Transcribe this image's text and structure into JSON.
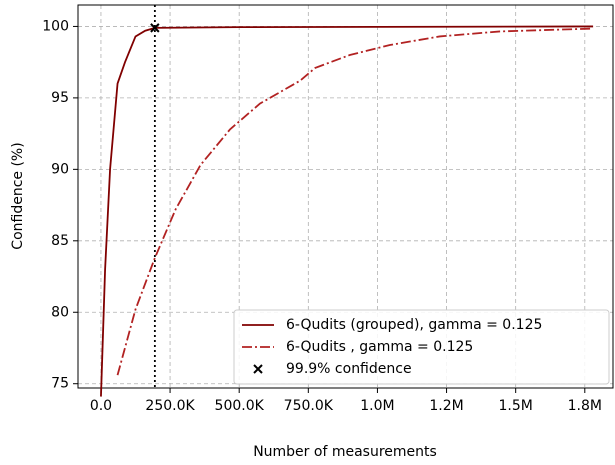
{
  "chart_data": {
    "type": "line",
    "xlabel": "Number of measurements",
    "ylabel": "Confidence (%)",
    "xlim": [
      -83000,
      1852000
    ],
    "ylim": [
      74.7,
      101.5
    ],
    "xticks": [
      {
        "value": 0,
        "label": "0.0"
      },
      {
        "value": 250000,
        "label": "250.0K"
      },
      {
        "value": 500000,
        "label": "500.0K"
      },
      {
        "value": 750000,
        "label": "750.0K"
      },
      {
        "value": 1000000,
        "label": "1.0M"
      },
      {
        "value": 1250000,
        "label": "1.2M"
      },
      {
        "value": 1500000,
        "label": "1.5M"
      },
      {
        "value": 1750000,
        "label": "1.8M"
      }
    ],
    "yticks": [
      75,
      80,
      85,
      90,
      95,
      100
    ],
    "grid": true,
    "legend": "lower right",
    "series": [
      {
        "name": "6-Qudits (grouped), gamma = 0.125",
        "color": "#800000",
        "style": "solid",
        "x": [
          0,
          15000,
          33000,
          60000,
          87000,
          125000,
          160000,
          195000,
          500000,
          1000000,
          1780000
        ],
        "values": [
          74.1,
          83,
          90,
          96,
          97.5,
          99.3,
          99.7,
          99.9,
          99.95,
          99.97,
          100
        ]
      },
      {
        "name": "6-Qudits , gamma = 0.125",
        "color": "#b22222",
        "style": "dashdot",
        "x": [
          60000,
          125000,
          195000,
          270000,
          360000,
          467000,
          575000,
          720000,
          775000,
          900000,
          1045000,
          1225000,
          1443000,
          1780000
        ],
        "values": [
          75.6,
          80.2,
          83.8,
          87.2,
          90.3,
          92.8,
          94.6,
          96.2,
          97.1,
          98.0,
          98.7,
          99.3,
          99.65,
          99.85
        ]
      },
      {
        "name": "99.9% confidence",
        "color": "#000000",
        "style": "marker",
        "x": [
          195000
        ],
        "values": [
          99.9
        ]
      }
    ]
  }
}
